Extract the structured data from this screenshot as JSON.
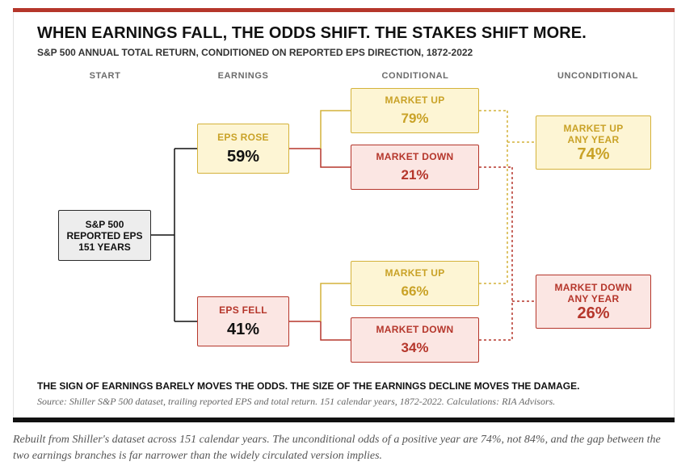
{
  "title": "WHEN EARNINGS FALL, THE ODDS SHIFT. THE STAKES SHIFT MORE.",
  "subtitle": "S&P 500 ANNUAL TOTAL RETURN, CONDITIONED ON REPORTED EPS DIRECTION, 1872-2022",
  "columns": {
    "start": "START",
    "earnings": "EARNINGS",
    "conditional": "CONDITIONAL",
    "unconditional": "UNCONDITIONAL"
  },
  "start_node": {
    "line1": "S&P 500",
    "line2": "REPORTED EPS",
    "line3": "151 YEARS"
  },
  "eps_rose": {
    "label": "EPS ROSE",
    "value": "59%"
  },
  "eps_fell": {
    "label": "EPS FELL",
    "value": "41%"
  },
  "rose_up": {
    "label": "MARKET UP",
    "value": "79%"
  },
  "rose_down": {
    "label": "MARKET DOWN",
    "value": "21%"
  },
  "fell_up": {
    "label": "MARKET UP",
    "value": "66%"
  },
  "fell_down": {
    "label": "MARKET DOWN",
    "value": "34%"
  },
  "uncond_up": {
    "line1": "MARKET UP",
    "line2": "ANY YEAR",
    "value": "74%"
  },
  "uncond_down": {
    "line1": "MARKET DOWN",
    "line2": "ANY YEAR",
    "value": "26%"
  },
  "footer_note": "THE SIGN OF EARNINGS BARELY MOVES THE ODDS. THE SIZE OF THE EARNINGS DECLINE MOVES THE DAMAGE.",
  "source": "Source: Shiller S&P 500 dataset, trailing reported EPS and total return. 151 calendar years, 1872-2022. Calculations: RIA Advisors.",
  "caption": "Rebuilt from Shiller's dataset across 151 calendar years. The unconditional odds of a positive year are 74%, not 84%, and the gap between the two earnings branches is far narrower than the widely circulated version implies.",
  "colors": {
    "accent_red": "#b5362b",
    "accent_yellow": "#d4b23a",
    "fill_yellow": "#fdf5d4",
    "fill_red": "#fbe6e3",
    "start_fill": "#ededed"
  }
}
